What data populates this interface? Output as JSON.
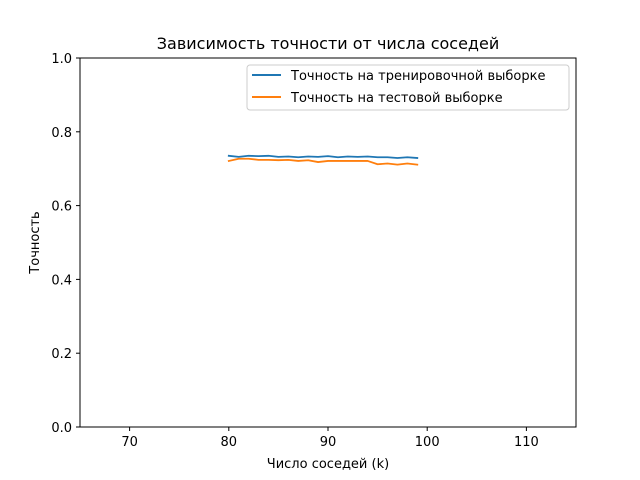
{
  "chart_data": {
    "type": "line",
    "title": "Зависимость точности от числа соседей",
    "xlabel": "Число соседей (k)",
    "ylabel": "Точность",
    "xlim": [
      65,
      115
    ],
    "ylim": [
      0.0,
      1.0
    ],
    "xticks": [
      70,
      80,
      90,
      100,
      110
    ],
    "yticks": [
      0.0,
      0.2,
      0.4,
      0.6,
      0.8,
      1.0
    ],
    "xtick_labels": [
      "70",
      "80",
      "90",
      "100",
      "110"
    ],
    "ytick_labels": [
      "0.0",
      "0.2",
      "0.4",
      "0.6",
      "0.8",
      "1.0"
    ],
    "grid": false,
    "legend_position": "top-right",
    "x": [
      80,
      81,
      82,
      83,
      84,
      85,
      86,
      87,
      88,
      89,
      90,
      91,
      92,
      93,
      94,
      95,
      96,
      97,
      98,
      99
    ],
    "series": [
      {
        "name": "Точность на тренировочной выборке",
        "color": "#1f77b4",
        "values": [
          0.735,
          0.732,
          0.735,
          0.734,
          0.735,
          0.732,
          0.733,
          0.731,
          0.733,
          0.732,
          0.734,
          0.731,
          0.733,
          0.732,
          0.733,
          0.731,
          0.731,
          0.729,
          0.731,
          0.729
        ]
      },
      {
        "name": "Точность на тестовой выборке",
        "color": "#ff7f0e",
        "values": [
          0.721,
          0.727,
          0.727,
          0.724,
          0.724,
          0.723,
          0.724,
          0.721,
          0.723,
          0.718,
          0.721,
          0.721,
          0.721,
          0.721,
          0.721,
          0.712,
          0.714,
          0.711,
          0.714,
          0.711
        ]
      }
    ]
  }
}
